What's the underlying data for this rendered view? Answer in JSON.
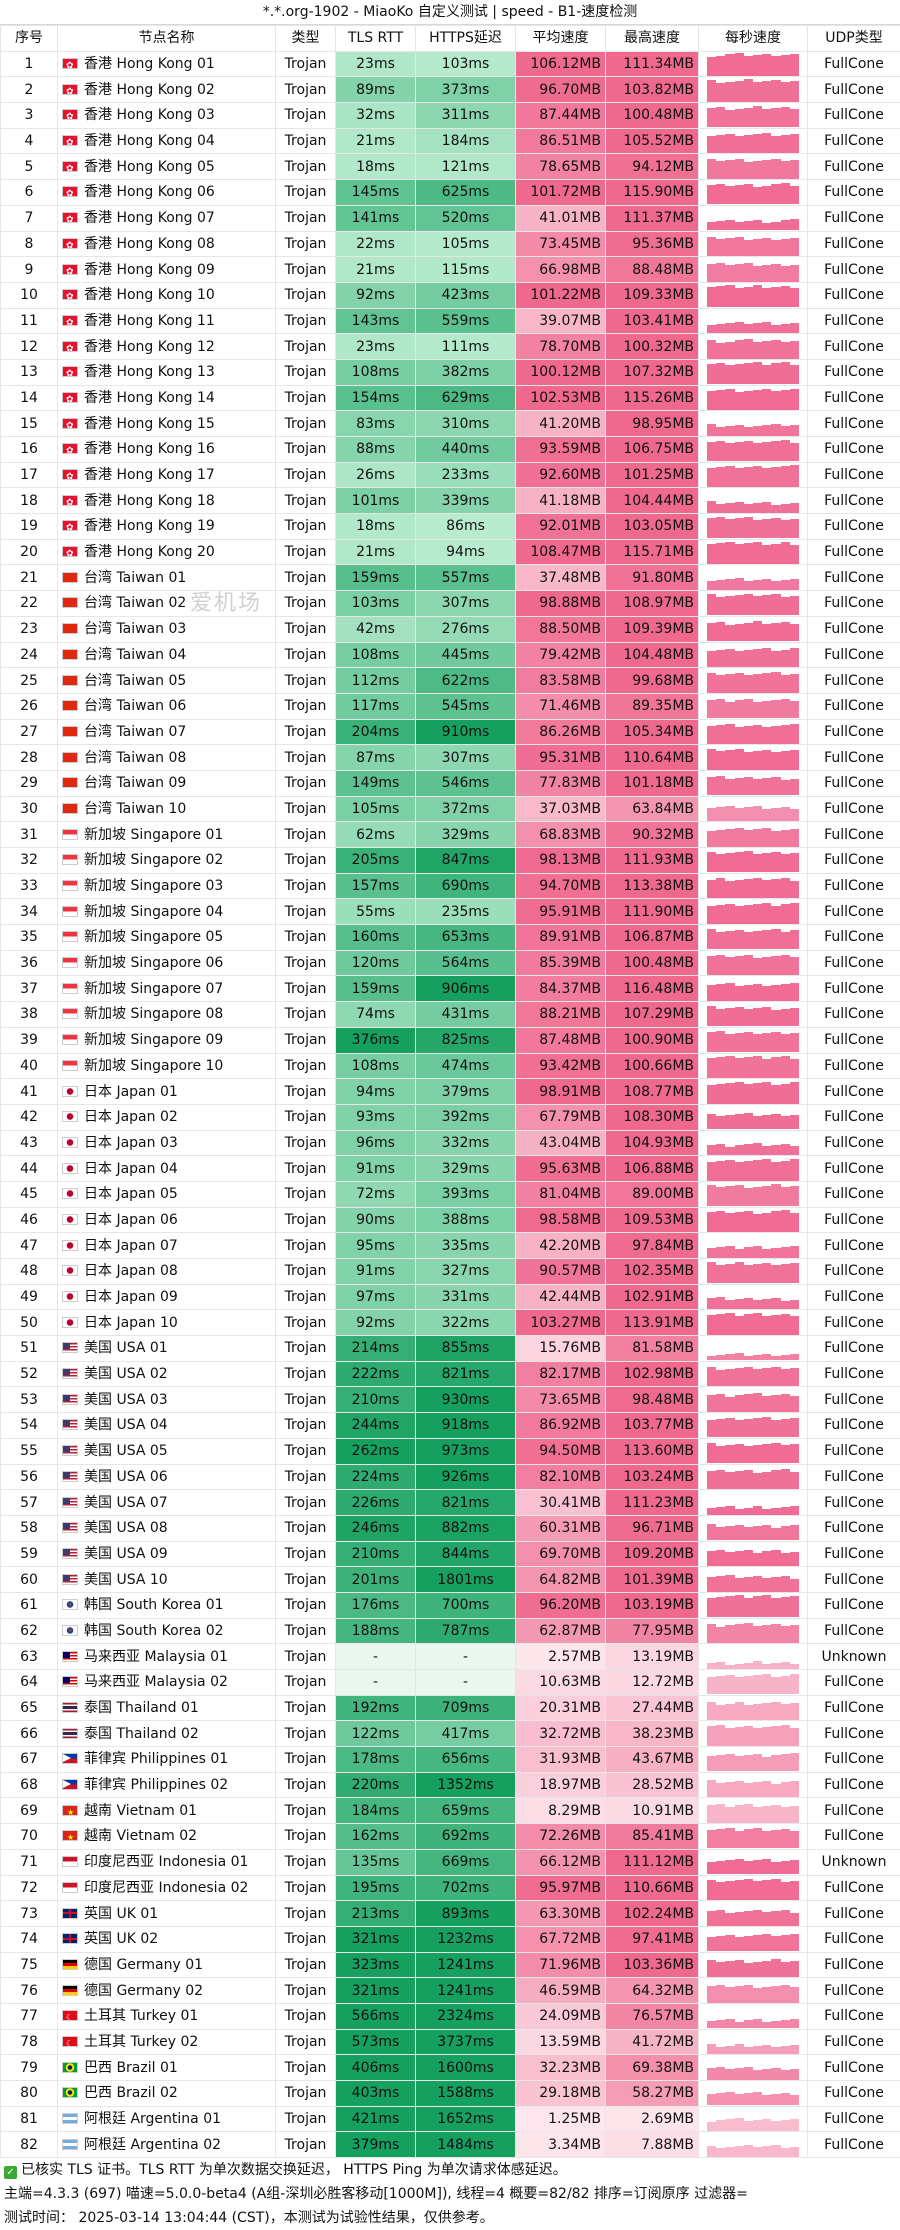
{
  "title": "*.*.org-1902 - MiaoKo 自定义测试 | speed - B1-速度检测",
  "watermark": "爱机场",
  "headers": [
    "序号",
    "节点名称",
    "类型",
    "TLS RTT",
    "HTTPS延迟",
    "平均速度",
    "最高速度",
    "每秒速度",
    "UDP类型"
  ],
  "rows": [
    {
      "idx": "1",
      "flag": "hk",
      "name": "香港 Hong Kong 01",
      "type": "Trojan",
      "tls": "23ms",
      "https": "103ms",
      "avg": "106.12MB",
      "max": "111.34MB",
      "udp": "FullCone"
    },
    {
      "idx": "2",
      "flag": "hk",
      "name": "香港 Hong Kong 02",
      "type": "Trojan",
      "tls": "89ms",
      "https": "373ms",
      "avg": "96.70MB",
      "max": "103.82MB",
      "udp": "FullCone"
    },
    {
      "idx": "3",
      "flag": "hk",
      "name": "香港 Hong Kong 03",
      "type": "Trojan",
      "tls": "32ms",
      "https": "311ms",
      "avg": "87.44MB",
      "max": "100.48MB",
      "udp": "FullCone"
    },
    {
      "idx": "4",
      "flag": "hk",
      "name": "香港 Hong Kong 04",
      "type": "Trojan",
      "tls": "21ms",
      "https": "184ms",
      "avg": "86.51MB",
      "max": "105.52MB",
      "udp": "FullCone"
    },
    {
      "idx": "5",
      "flag": "hk",
      "name": "香港 Hong Kong 05",
      "type": "Trojan",
      "tls": "18ms",
      "https": "121ms",
      "avg": "78.65MB",
      "max": "94.12MB",
      "udp": "FullCone"
    },
    {
      "idx": "6",
      "flag": "hk",
      "name": "香港 Hong Kong 06",
      "type": "Trojan",
      "tls": "145ms",
      "https": "625ms",
      "avg": "101.72MB",
      "max": "115.90MB",
      "udp": "FullCone"
    },
    {
      "idx": "7",
      "flag": "hk",
      "name": "香港 Hong Kong 07",
      "type": "Trojan",
      "tls": "141ms",
      "https": "520ms",
      "avg": "41.01MB",
      "max": "111.37MB",
      "udp": "FullCone"
    },
    {
      "idx": "8",
      "flag": "hk",
      "name": "香港 Hong Kong 08",
      "type": "Trojan",
      "tls": "22ms",
      "https": "105ms",
      "avg": "73.45MB",
      "max": "95.36MB",
      "udp": "FullCone"
    },
    {
      "idx": "9",
      "flag": "hk",
      "name": "香港 Hong Kong 09",
      "type": "Trojan",
      "tls": "21ms",
      "https": "115ms",
      "avg": "66.98MB",
      "max": "88.48MB",
      "udp": "FullCone"
    },
    {
      "idx": "10",
      "flag": "hk",
      "name": "香港 Hong Kong 10",
      "type": "Trojan",
      "tls": "92ms",
      "https": "423ms",
      "avg": "101.22MB",
      "max": "109.33MB",
      "udp": "FullCone"
    },
    {
      "idx": "11",
      "flag": "hk",
      "name": "香港 Hong Kong 11",
      "type": "Trojan",
      "tls": "143ms",
      "https": "559ms",
      "avg": "39.07MB",
      "max": "103.41MB",
      "udp": "FullCone"
    },
    {
      "idx": "12",
      "flag": "hk",
      "name": "香港 Hong Kong 12",
      "type": "Trojan",
      "tls": "23ms",
      "https": "111ms",
      "avg": "78.70MB",
      "max": "100.32MB",
      "udp": "FullCone"
    },
    {
      "idx": "13",
      "flag": "hk",
      "name": "香港 Hong Kong 13",
      "type": "Trojan",
      "tls": "108ms",
      "https": "382ms",
      "avg": "100.12MB",
      "max": "107.32MB",
      "udp": "FullCone"
    },
    {
      "idx": "14",
      "flag": "hk",
      "name": "香港 Hong Kong 14",
      "type": "Trojan",
      "tls": "154ms",
      "https": "629ms",
      "avg": "102.53MB",
      "max": "115.26MB",
      "udp": "FullCone"
    },
    {
      "idx": "15",
      "flag": "hk",
      "name": "香港 Hong Kong 15",
      "type": "Trojan",
      "tls": "83ms",
      "https": "310ms",
      "avg": "41.20MB",
      "max": "98.95MB",
      "udp": "FullCone"
    },
    {
      "idx": "16",
      "flag": "hk",
      "name": "香港 Hong Kong 16",
      "type": "Trojan",
      "tls": "88ms",
      "https": "440ms",
      "avg": "93.59MB",
      "max": "106.75MB",
      "udp": "FullCone"
    },
    {
      "idx": "17",
      "flag": "hk",
      "name": "香港 Hong Kong 17",
      "type": "Trojan",
      "tls": "26ms",
      "https": "233ms",
      "avg": "92.60MB",
      "max": "101.25MB",
      "udp": "FullCone"
    },
    {
      "idx": "18",
      "flag": "hk",
      "name": "香港 Hong Kong 18",
      "type": "Trojan",
      "tls": "101ms",
      "https": "339ms",
      "avg": "41.18MB",
      "max": "104.44MB",
      "udp": "FullCone"
    },
    {
      "idx": "19",
      "flag": "hk",
      "name": "香港 Hong Kong 19",
      "type": "Trojan",
      "tls": "18ms",
      "https": "86ms",
      "avg": "92.01MB",
      "max": "103.05MB",
      "udp": "FullCone"
    },
    {
      "idx": "20",
      "flag": "hk",
      "name": "香港 Hong Kong 20",
      "type": "Trojan",
      "tls": "21ms",
      "https": "94ms",
      "avg": "108.47MB",
      "max": "115.71MB",
      "udp": "FullCone"
    },
    {
      "idx": "21",
      "flag": "tw",
      "name": "台湾 Taiwan 01",
      "type": "Trojan",
      "tls": "159ms",
      "https": "557ms",
      "avg": "37.48MB",
      "max": "91.80MB",
      "udp": "FullCone"
    },
    {
      "idx": "22",
      "flag": "tw",
      "name": "台湾 Taiwan 02",
      "type": "Trojan",
      "tls": "103ms",
      "https": "307ms",
      "avg": "98.88MB",
      "max": "108.97MB",
      "udp": "FullCone"
    },
    {
      "idx": "23",
      "flag": "tw",
      "name": "台湾 Taiwan 03",
      "type": "Trojan",
      "tls": "42ms",
      "https": "276ms",
      "avg": "88.50MB",
      "max": "109.39MB",
      "udp": "FullCone"
    },
    {
      "idx": "24",
      "flag": "tw",
      "name": "台湾 Taiwan 04",
      "type": "Trojan",
      "tls": "108ms",
      "https": "445ms",
      "avg": "79.42MB",
      "max": "104.48MB",
      "udp": "FullCone"
    },
    {
      "idx": "25",
      "flag": "tw",
      "name": "台湾 Taiwan 05",
      "type": "Trojan",
      "tls": "112ms",
      "https": "622ms",
      "avg": "83.58MB",
      "max": "99.68MB",
      "udp": "FullCone"
    },
    {
      "idx": "26",
      "flag": "tw",
      "name": "台湾 Taiwan 06",
      "type": "Trojan",
      "tls": "117ms",
      "https": "545ms",
      "avg": "71.46MB",
      "max": "89.35MB",
      "udp": "FullCone"
    },
    {
      "idx": "27",
      "flag": "tw",
      "name": "台湾 Taiwan 07",
      "type": "Trojan",
      "tls": "204ms",
      "https": "910ms",
      "avg": "86.26MB",
      "max": "105.34MB",
      "udp": "FullCone"
    },
    {
      "idx": "28",
      "flag": "tw",
      "name": "台湾 Taiwan 08",
      "type": "Trojan",
      "tls": "87ms",
      "https": "307ms",
      "avg": "95.31MB",
      "max": "110.64MB",
      "udp": "FullCone"
    },
    {
      "idx": "29",
      "flag": "tw",
      "name": "台湾 Taiwan 09",
      "type": "Trojan",
      "tls": "149ms",
      "https": "546ms",
      "avg": "77.83MB",
      "max": "101.18MB",
      "udp": "FullCone"
    },
    {
      "idx": "30",
      "flag": "tw",
      "name": "台湾 Taiwan 10",
      "type": "Trojan",
      "tls": "105ms",
      "https": "372ms",
      "avg": "37.03MB",
      "max": "63.84MB",
      "udp": "FullCone"
    },
    {
      "idx": "31",
      "flag": "sg",
      "name": "新加坡 Singapore 01",
      "type": "Trojan",
      "tls": "62ms",
      "https": "329ms",
      "avg": "68.83MB",
      "max": "90.32MB",
      "udp": "FullCone"
    },
    {
      "idx": "32",
      "flag": "sg",
      "name": "新加坡 Singapore 02",
      "type": "Trojan",
      "tls": "205ms",
      "https": "847ms",
      "avg": "98.13MB",
      "max": "111.93MB",
      "udp": "FullCone"
    },
    {
      "idx": "33",
      "flag": "sg",
      "name": "新加坡 Singapore 03",
      "type": "Trojan",
      "tls": "157ms",
      "https": "690ms",
      "avg": "94.70MB",
      "max": "113.38MB",
      "udp": "FullCone"
    },
    {
      "idx": "34",
      "flag": "sg",
      "name": "新加坡 Singapore 04",
      "type": "Trojan",
      "tls": "55ms",
      "https": "235ms",
      "avg": "95.91MB",
      "max": "111.90MB",
      "udp": "FullCone"
    },
    {
      "idx": "35",
      "flag": "sg",
      "name": "新加坡 Singapore 05",
      "type": "Trojan",
      "tls": "160ms",
      "https": "653ms",
      "avg": "89.91MB",
      "max": "106.87MB",
      "udp": "FullCone"
    },
    {
      "idx": "36",
      "flag": "sg",
      "name": "新加坡 Singapore 06",
      "type": "Trojan",
      "tls": "120ms",
      "https": "564ms",
      "avg": "85.39MB",
      "max": "100.48MB",
      "udp": "FullCone"
    },
    {
      "idx": "37",
      "flag": "sg",
      "name": "新加坡 Singapore 07",
      "type": "Trojan",
      "tls": "159ms",
      "https": "906ms",
      "avg": "84.37MB",
      "max": "116.48MB",
      "udp": "FullCone"
    },
    {
      "idx": "38",
      "flag": "sg",
      "name": "新加坡 Singapore 08",
      "type": "Trojan",
      "tls": "74ms",
      "https": "431ms",
      "avg": "88.21MB",
      "max": "107.29MB",
      "udp": "FullCone"
    },
    {
      "idx": "39",
      "flag": "sg",
      "name": "新加坡 Singapore 09",
      "type": "Trojan",
      "tls": "376ms",
      "https": "825ms",
      "avg": "87.48MB",
      "max": "100.90MB",
      "udp": "FullCone"
    },
    {
      "idx": "40",
      "flag": "sg",
      "name": "新加坡 Singapore 10",
      "type": "Trojan",
      "tls": "108ms",
      "https": "474ms",
      "avg": "93.42MB",
      "max": "100.66MB",
      "udp": "FullCone"
    },
    {
      "idx": "41",
      "flag": "jp",
      "name": "日本 Japan 01",
      "type": "Trojan",
      "tls": "94ms",
      "https": "379ms",
      "avg": "98.91MB",
      "max": "108.77MB",
      "udp": "FullCone"
    },
    {
      "idx": "42",
      "flag": "jp",
      "name": "日本 Japan 02",
      "type": "Trojan",
      "tls": "93ms",
      "https": "392ms",
      "avg": "67.79MB",
      "max": "108.30MB",
      "udp": "FullCone"
    },
    {
      "idx": "43",
      "flag": "jp",
      "name": "日本 Japan 03",
      "type": "Trojan",
      "tls": "96ms",
      "https": "332ms",
      "avg": "43.04MB",
      "max": "104.93MB",
      "udp": "FullCone"
    },
    {
      "idx": "44",
      "flag": "jp",
      "name": "日本 Japan 04",
      "type": "Trojan",
      "tls": "91ms",
      "https": "329ms",
      "avg": "95.63MB",
      "max": "106.88MB",
      "udp": "FullCone"
    },
    {
      "idx": "45",
      "flag": "jp",
      "name": "日本 Japan 05",
      "type": "Trojan",
      "tls": "72ms",
      "https": "393ms",
      "avg": "81.04MB",
      "max": "89.00MB",
      "udp": "FullCone"
    },
    {
      "idx": "46",
      "flag": "jp",
      "name": "日本 Japan 06",
      "type": "Trojan",
      "tls": "90ms",
      "https": "388ms",
      "avg": "98.58MB",
      "max": "109.53MB",
      "udp": "FullCone"
    },
    {
      "idx": "47",
      "flag": "jp",
      "name": "日本 Japan 07",
      "type": "Trojan",
      "tls": "95ms",
      "https": "335ms",
      "avg": "42.20MB",
      "max": "97.84MB",
      "udp": "FullCone"
    },
    {
      "idx": "48",
      "flag": "jp",
      "name": "日本 Japan 08",
      "type": "Trojan",
      "tls": "91ms",
      "https": "327ms",
      "avg": "90.57MB",
      "max": "102.35MB",
      "udp": "FullCone"
    },
    {
      "idx": "49",
      "flag": "jp",
      "name": "日本 Japan 09",
      "type": "Trojan",
      "tls": "97ms",
      "https": "331ms",
      "avg": "42.44MB",
      "max": "102.91MB",
      "udp": "FullCone"
    },
    {
      "idx": "50",
      "flag": "jp",
      "name": "日本 Japan 10",
      "type": "Trojan",
      "tls": "92ms",
      "https": "322ms",
      "avg": "103.27MB",
      "max": "113.91MB",
      "udp": "FullCone"
    },
    {
      "idx": "51",
      "flag": "us",
      "name": "美国 USA 01",
      "type": "Trojan",
      "tls": "214ms",
      "https": "855ms",
      "avg": "15.76MB",
      "max": "81.58MB",
      "udp": "FullCone"
    },
    {
      "idx": "52",
      "flag": "us",
      "name": "美国 USA 02",
      "type": "Trojan",
      "tls": "222ms",
      "https": "821ms",
      "avg": "82.17MB",
      "max": "102.98MB",
      "udp": "FullCone"
    },
    {
      "idx": "53",
      "flag": "us",
      "name": "美国 USA 03",
      "type": "Trojan",
      "tls": "210ms",
      "https": "930ms",
      "avg": "73.65MB",
      "max": "98.48MB",
      "udp": "FullCone"
    },
    {
      "idx": "54",
      "flag": "us",
      "name": "美国 USA 04",
      "type": "Trojan",
      "tls": "244ms",
      "https": "918ms",
      "avg": "86.92MB",
      "max": "103.77MB",
      "udp": "FullCone"
    },
    {
      "idx": "55",
      "flag": "us",
      "name": "美国 USA 05",
      "type": "Trojan",
      "tls": "262ms",
      "https": "973ms",
      "avg": "94.50MB",
      "max": "113.60MB",
      "udp": "FullCone"
    },
    {
      "idx": "56",
      "flag": "us",
      "name": "美国 USA 06",
      "type": "Trojan",
      "tls": "224ms",
      "https": "926ms",
      "avg": "82.10MB",
      "max": "103.24MB",
      "udp": "FullCone"
    },
    {
      "idx": "57",
      "flag": "us",
      "name": "美国 USA 07",
      "type": "Trojan",
      "tls": "226ms",
      "https": "821ms",
      "avg": "30.41MB",
      "max": "111.23MB",
      "udp": "FullCone"
    },
    {
      "idx": "58",
      "flag": "us",
      "name": "美国 USA 08",
      "type": "Trojan",
      "tls": "246ms",
      "https": "882ms",
      "avg": "60.31MB",
      "max": "96.71MB",
      "udp": "FullCone"
    },
    {
      "idx": "59",
      "flag": "us",
      "name": "美国 USA 09",
      "type": "Trojan",
      "tls": "210ms",
      "https": "844ms",
      "avg": "69.70MB",
      "max": "109.20MB",
      "udp": "FullCone"
    },
    {
      "idx": "60",
      "flag": "us",
      "name": "美国 USA 10",
      "type": "Trojan",
      "tls": "201ms",
      "https": "1801ms",
      "avg": "64.82MB",
      "max": "101.39MB",
      "udp": "FullCone"
    },
    {
      "idx": "61",
      "flag": "kr",
      "name": "韩国 South Korea 01",
      "type": "Trojan",
      "tls": "176ms",
      "https": "700ms",
      "avg": "96.20MB",
      "max": "103.19MB",
      "udp": "FullCone"
    },
    {
      "idx": "62",
      "flag": "kr",
      "name": "韩国 South Korea 02",
      "type": "Trojan",
      "tls": "188ms",
      "https": "787ms",
      "avg": "62.87MB",
      "max": "77.95MB",
      "udp": "FullCone"
    },
    {
      "idx": "63",
      "flag": "my",
      "name": "马来西亚 Malaysia 01",
      "type": "Trojan",
      "tls": "-",
      "https": "-",
      "avg": "2.57MB",
      "max": "13.19MB",
      "udp": "Unknown"
    },
    {
      "idx": "64",
      "flag": "my",
      "name": "马来西亚 Malaysia 02",
      "type": "Trojan",
      "tls": "-",
      "https": "-",
      "avg": "10.63MB",
      "max": "12.72MB",
      "udp": "FullCone"
    },
    {
      "idx": "65",
      "flag": "th",
      "name": "泰国 Thailand 01",
      "type": "Trojan",
      "tls": "192ms",
      "https": "709ms",
      "avg": "20.31MB",
      "max": "27.44MB",
      "udp": "FullCone"
    },
    {
      "idx": "66",
      "flag": "th",
      "name": "泰国 Thailand 02",
      "type": "Trojan",
      "tls": "122ms",
      "https": "417ms",
      "avg": "32.72MB",
      "max": "38.23MB",
      "udp": "FullCone"
    },
    {
      "idx": "67",
      "flag": "ph",
      "name": "菲律宾 Philippines 01",
      "type": "Trojan",
      "tls": "178ms",
      "https": "656ms",
      "avg": "31.93MB",
      "max": "43.67MB",
      "udp": "FullCone"
    },
    {
      "idx": "68",
      "flag": "ph",
      "name": "菲律宾 Philippines 02",
      "type": "Trojan",
      "tls": "220ms",
      "https": "1352ms",
      "avg": "18.97MB",
      "max": "28.52MB",
      "udp": "FullCone"
    },
    {
      "idx": "69",
      "flag": "vn",
      "name": "越南 Vietnam 01",
      "type": "Trojan",
      "tls": "184ms",
      "https": "659ms",
      "avg": "8.29MB",
      "max": "10.91MB",
      "udp": "FullCone"
    },
    {
      "idx": "70",
      "flag": "vn",
      "name": "越南 Vietnam 02",
      "type": "Trojan",
      "tls": "162ms",
      "https": "692ms",
      "avg": "72.26MB",
      "max": "85.41MB",
      "udp": "FullCone"
    },
    {
      "idx": "71",
      "flag": "id",
      "name": "印度尼西亚 Indonesia 01",
      "type": "Trojan",
      "tls": "135ms",
      "https": "669ms",
      "avg": "66.12MB",
      "max": "111.12MB",
      "udp": "Unknown"
    },
    {
      "idx": "72",
      "flag": "id",
      "name": "印度尼西亚 Indonesia 02",
      "type": "Trojan",
      "tls": "195ms",
      "https": "702ms",
      "avg": "95.97MB",
      "max": "110.66MB",
      "udp": "FullCone"
    },
    {
      "idx": "73",
      "flag": "uk",
      "name": "英国 UK 01",
      "type": "Trojan",
      "tls": "213ms",
      "https": "893ms",
      "avg": "63.30MB",
      "max": "102.24MB",
      "udp": "FullCone"
    },
    {
      "idx": "74",
      "flag": "uk",
      "name": "英国 UK 02",
      "type": "Trojan",
      "tls": "321ms",
      "https": "1232ms",
      "avg": "67.72MB",
      "max": "97.41MB",
      "udp": "FullCone"
    },
    {
      "idx": "75",
      "flag": "de",
      "name": "德国 Germany 01",
      "type": "Trojan",
      "tls": "323ms",
      "https": "1241ms",
      "avg": "71.96MB",
      "max": "103.36MB",
      "udp": "FullCone"
    },
    {
      "idx": "76",
      "flag": "de",
      "name": "德国 Germany 02",
      "type": "Trojan",
      "tls": "321ms",
      "https": "1241ms",
      "avg": "46.59MB",
      "max": "64.32MB",
      "udp": "FullCone"
    },
    {
      "idx": "77",
      "flag": "tr",
      "name": "土耳其 Turkey 01",
      "type": "Trojan",
      "tls": "566ms",
      "https": "2324ms",
      "avg": "24.09MB",
      "max": "76.57MB",
      "udp": "FullCone"
    },
    {
      "idx": "78",
      "flag": "tr",
      "name": "土耳其 Turkey 02",
      "type": "Trojan",
      "tls": "573ms",
      "https": "3737ms",
      "avg": "13.59MB",
      "max": "41.72MB",
      "udp": "FullCone"
    },
    {
      "idx": "79",
      "flag": "br",
      "name": "巴西 Brazil 01",
      "type": "Trojan",
      "tls": "406ms",
      "https": "1600ms",
      "avg": "32.23MB",
      "max": "69.38MB",
      "udp": "FullCone"
    },
    {
      "idx": "80",
      "flag": "br",
      "name": "巴西 Brazil 02",
      "type": "Trojan",
      "tls": "403ms",
      "https": "1588ms",
      "avg": "29.18MB",
      "max": "58.27MB",
      "udp": "FullCone"
    },
    {
      "idx": "81",
      "flag": "ar",
      "name": "阿根廷 Argentina 01",
      "type": "Trojan",
      "tls": "421ms",
      "https": "1652ms",
      "avg": "1.25MB",
      "max": "2.69MB",
      "udp": "FullCone"
    },
    {
      "idx": "82",
      "flag": "ar",
      "name": "阿根廷 Argentina 02",
      "type": "Trojan",
      "tls": "379ms",
      "https": "1484ms",
      "avg": "3.34MB",
      "max": "7.88MB",
      "udp": "FullCone"
    }
  ],
  "footer": {
    "line1": "已核实 TLS 证书。TLS RTT 为单次数据交换延迟， HTTPS Ping 为单次请求体感延迟。",
    "line2": "主端=4.3.3 (697) 喵速=5.0.0-beta4 (A组-深圳必胜客移动[1000M]), 线程=4 概要=82/82 排序=订阅原序 过滤器=",
    "line3": "测试时间： 2025-03-14 13:04:44 (CST)，本测试为试验性结果，仅供参考。"
  }
}
